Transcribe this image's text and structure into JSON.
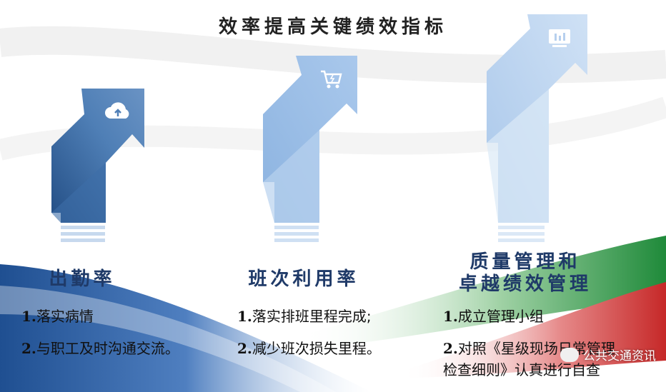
{
  "title": "效率提高关键绩效指标",
  "columns": [
    {
      "heading_lines": [
        "出勤率"
      ],
      "icon": "cloud-upload-icon",
      "items": [
        {
          "num": "1.",
          "text": "落实病情"
        },
        {
          "num": "2.",
          "text": "与职工及时沟通交流。"
        }
      ]
    },
    {
      "heading_lines": [
        "班次利用率"
      ],
      "icon": "shopping-cart-icon",
      "items": [
        {
          "num": "1.",
          "text": "落实排班里程完成;"
        },
        {
          "num": "2.",
          "text": "减少班次损失里程。"
        }
      ]
    },
    {
      "heading_lines": [
        "质量管理和",
        "卓越绩效管理"
      ],
      "icon": "bar-chart-icon",
      "items": [
        {
          "num": "1.",
          "text": "成立管理小组"
        },
        {
          "num": "2.",
          "text": "对照《星级现场日常管理"
        },
        {
          "num": "",
          "text": "检查细则》认真进行自查"
        }
      ]
    }
  ],
  "watermark": {
    "text": "公共交通资讯",
    "icon": "wechat-icon"
  },
  "colors": {
    "arrow_dark": "#2f5f95",
    "arrow_mid": "#8eb6e2",
    "arrow_light": "#c5dcf3",
    "heading": "#1f3a68",
    "wave_blue": "#2b5da0",
    "wave_green": "#2e8b3d",
    "wave_red": "#c62828"
  }
}
